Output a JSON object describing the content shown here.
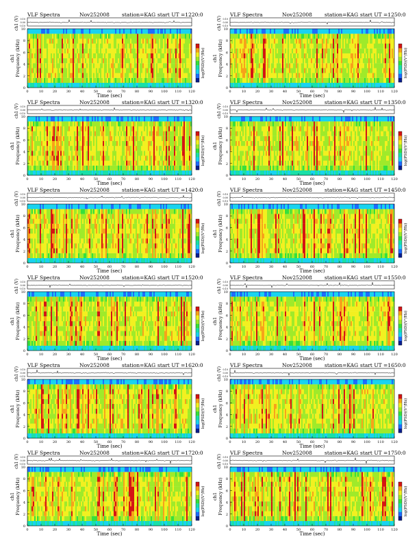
{
  "header_left": "VLF Spectra",
  "date": "Nov252008",
  "station": "station=KAG",
  "ylabel_ch1": "ch1 (V)",
  "ylabel_spec": "ch1",
  "ylabel_freq": "Frequency (kHz)",
  "xlabel": "Time (sec)",
  "colorbar_label": "log(PSD)(V²/Hz)",
  "amp_ticks": [
    "0.10",
    "0.00",
    "-0.10"
  ],
  "palette": [
    "#0a1f8f",
    "#1e6cff",
    "#19d3f0",
    "#19e0a8",
    "#37e03c",
    "#9fea2a",
    "#f2f020",
    "#f7a21a",
    "#d41414"
  ],
  "chart_data": [
    {
      "type": "heatmap",
      "title": "start UT =1220:0",
      "x_range": [
        0,
        120
      ],
      "y_range": [
        0,
        10
      ],
      "x_ticks": [
        0,
        10,
        20,
        30,
        40,
        50,
        60,
        70,
        80,
        90,
        100,
        110,
        120
      ],
      "y_ticks": [
        0,
        2,
        4,
        6,
        8,
        10
      ],
      "seed": 11
    },
    {
      "type": "heatmap",
      "title": "start UT =1250:0",
      "x_range": [
        0,
        120
      ],
      "y_range": [
        0,
        10
      ],
      "x_ticks": [
        0,
        10,
        20,
        30,
        40,
        50,
        60,
        70,
        80,
        90,
        100,
        110,
        120
      ],
      "y_ticks": [
        0,
        2,
        4,
        6,
        8,
        10
      ],
      "seed": 23
    },
    {
      "type": "heatmap",
      "title": "start UT =1320:0",
      "x_range": [
        0,
        120
      ],
      "y_range": [
        0,
        10
      ],
      "x_ticks": [
        0,
        10,
        20,
        30,
        40,
        50,
        60,
        70,
        80,
        90,
        100,
        110,
        120
      ],
      "y_ticks": [
        0,
        2,
        4,
        6,
        8,
        10
      ],
      "seed": 37
    },
    {
      "type": "heatmap",
      "title": "start UT =1350:0",
      "x_range": [
        0,
        120
      ],
      "y_range": [
        0,
        10
      ],
      "x_ticks": [
        0,
        10,
        20,
        30,
        40,
        50,
        60,
        70,
        80,
        90,
        100,
        110,
        120
      ],
      "y_ticks": [
        0,
        2,
        4,
        6,
        8,
        10
      ],
      "seed": 41
    },
    {
      "type": "heatmap",
      "title": "start UT =1420:0",
      "x_range": [
        0,
        120
      ],
      "y_range": [
        0,
        10
      ],
      "x_ticks": [
        0,
        10,
        20,
        30,
        40,
        50,
        60,
        70,
        80,
        90,
        100,
        110,
        120
      ],
      "y_ticks": [
        0,
        2,
        4,
        6,
        8,
        10
      ],
      "seed": 53
    },
    {
      "type": "heatmap",
      "title": "start UT =1450:0",
      "x_range": [
        0,
        120
      ],
      "y_range": [
        0,
        10
      ],
      "x_ticks": [
        0,
        10,
        20,
        30,
        40,
        50,
        60,
        70,
        80,
        90,
        100,
        110,
        120
      ],
      "y_ticks": [
        0,
        2,
        4,
        6,
        8,
        10
      ],
      "seed": 67
    },
    {
      "type": "heatmap",
      "title": "start UT =1520:0",
      "x_range": [
        0,
        120
      ],
      "y_range": [
        0,
        10
      ],
      "x_ticks": [
        0,
        10,
        20,
        30,
        40,
        50,
        60,
        70,
        80,
        90,
        100,
        110,
        120
      ],
      "y_ticks": [
        0,
        2,
        4,
        6,
        8,
        10
      ],
      "seed": 71
    },
    {
      "type": "heatmap",
      "title": "start UT =1550:0",
      "x_range": [
        0,
        120
      ],
      "y_range": [
        0,
        10
      ],
      "x_ticks": [
        0,
        10,
        20,
        30,
        40,
        50,
        60,
        70,
        80,
        90,
        100,
        110,
        120
      ],
      "y_ticks": [
        0,
        2,
        4,
        6,
        8,
        10
      ],
      "seed": 83
    },
    {
      "type": "heatmap",
      "title": "start UT =1620:0",
      "x_range": [
        0,
        120
      ],
      "y_range": [
        0,
        10
      ],
      "x_ticks": [
        0,
        10,
        20,
        30,
        40,
        50,
        60,
        70,
        80,
        90,
        100,
        110,
        120
      ],
      "y_ticks": [
        0,
        2,
        4,
        6,
        8,
        10
      ],
      "seed": 97
    },
    {
      "type": "heatmap",
      "title": "start UT =1650:0",
      "x_range": [
        0,
        120
      ],
      "y_range": [
        0,
        10
      ],
      "x_ticks": [
        0,
        10,
        20,
        30,
        40,
        50,
        60,
        70,
        80,
        90,
        100,
        110,
        120
      ],
      "y_ticks": [
        0,
        2,
        4,
        6,
        8,
        10
      ],
      "seed": 101
    },
    {
      "type": "heatmap",
      "title": "start UT =1720:0",
      "x_range": [
        0,
        120
      ],
      "y_range": [
        0,
        10
      ],
      "x_ticks": [
        0,
        10,
        20,
        30,
        40,
        50,
        60,
        70,
        80,
        90,
        100,
        110,
        120
      ],
      "y_ticks": [
        0,
        2,
        4,
        6,
        8,
        10
      ],
      "seed": 113
    },
    {
      "type": "heatmap",
      "title": "start UT =1750:0",
      "x_range": [
        0,
        120
      ],
      "y_range": [
        0,
        10
      ],
      "x_ticks": [
        0,
        10,
        20,
        30,
        40,
        50,
        60,
        70,
        80,
        90,
        100,
        110,
        120
      ],
      "y_ticks": [
        0,
        2,
        4,
        6,
        8,
        10
      ],
      "seed": 127
    }
  ]
}
